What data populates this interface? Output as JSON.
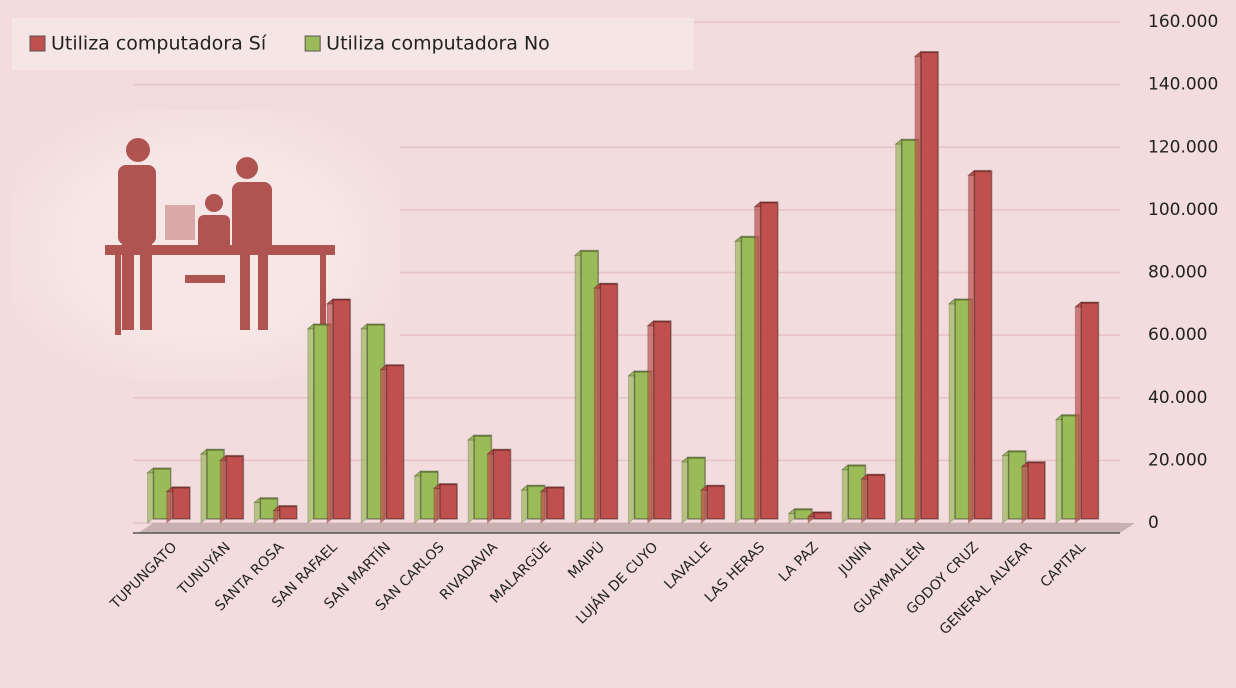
{
  "chart_data": {
    "type": "bar",
    "categories": [
      "TUPUNGATO",
      "TUNUYÁN",
      "SANTA ROSA",
      "SAN RAFAEL",
      "SAN MARTÍN",
      "SAN CARLOS",
      "RIVADAVIA",
      "MALARGÜE",
      "MAIPÚ",
      "LUJÁN DE CUYO",
      "LAVALLE",
      "LAS HERAS",
      "LA PAZ",
      "JUNÍN",
      "GUAYMALLÉN",
      "GODOY CRUZ",
      "GENERAL ALVEAR",
      "CAPITAL"
    ],
    "series": [
      {
        "name": "Utiliza computadora Sí",
        "color": "#c0504d",
        "values": [
          10000,
          20000,
          4000,
          70000,
          49000,
          11000,
          22000,
          10000,
          75000,
          63000,
          10500,
          101000,
          2000,
          14000,
          149000,
          111000,
          18000,
          69000
        ]
      },
      {
        "name": "Utiliza computadora No",
        "color": "#9bbb59",
        "values": [
          16000,
          22000,
          6500,
          62000,
          62000,
          15000,
          26500,
          10500,
          85500,
          47000,
          19500,
          90000,
          3000,
          17000,
          121000,
          70000,
          21500,
          33000
        ]
      }
    ],
    "ylim": [
      0,
      160000
    ],
    "yticks": [
      0,
      {
        "value": 20000,
        "label": "20.000"
      },
      {
        "value": 40000,
        "label": "40.000"
      },
      {
        "value": 60000,
        "label": "60.000"
      },
      {
        "value": 80000,
        "label": "80.000"
      },
      {
        "value": 100000,
        "label": "100.000"
      },
      {
        "value": 120000,
        "label": "120.000"
      },
      {
        "value": 140000,
        "label": "140.000"
      },
      {
        "value": 160000,
        "label": "160.000"
      }
    ],
    "grid": true,
    "y_axis_side": "right"
  }
}
